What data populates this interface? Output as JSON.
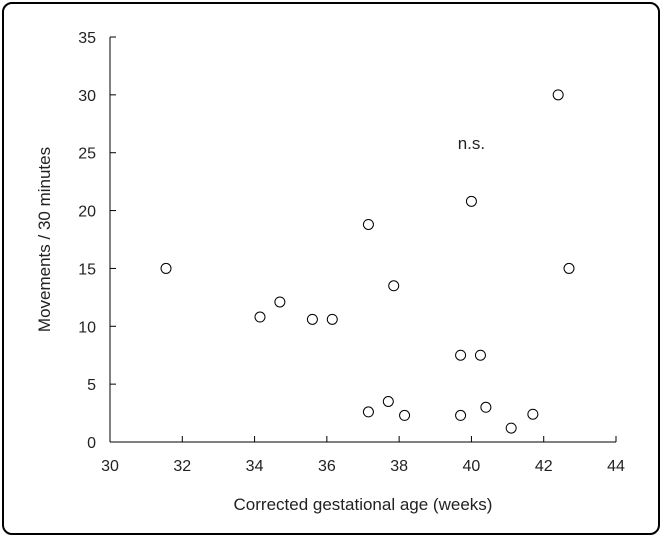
{
  "chart_data": {
    "type": "scatter",
    "xlabel": "Corrected gestational age (weeks)",
    "ylabel": "Movements / 30 minutes",
    "xlim": [
      30,
      44
    ],
    "ylim": [
      0,
      35
    ],
    "xticks": [
      30,
      32,
      34,
      36,
      38,
      40,
      42,
      44
    ],
    "yticks": [
      0,
      5,
      10,
      15,
      20,
      25,
      30,
      35
    ],
    "annotation": "n.s.",
    "grid": false,
    "marker": "open-circle",
    "points": [
      {
        "x": 31.55,
        "y": 15.0
      },
      {
        "x": 34.15,
        "y": 10.8
      },
      {
        "x": 34.7,
        "y": 12.1
      },
      {
        "x": 35.6,
        "y": 10.6
      },
      {
        "x": 36.15,
        "y": 10.6
      },
      {
        "x": 37.15,
        "y": 18.8
      },
      {
        "x": 37.15,
        "y": 2.6
      },
      {
        "x": 37.7,
        "y": 3.5
      },
      {
        "x": 37.85,
        "y": 13.5
      },
      {
        "x": 38.15,
        "y": 2.3
      },
      {
        "x": 39.7,
        "y": 7.5
      },
      {
        "x": 39.7,
        "y": 2.3
      },
      {
        "x": 40.0,
        "y": 20.8
      },
      {
        "x": 40.25,
        "y": 7.5
      },
      {
        "x": 40.4,
        "y": 3.0
      },
      {
        "x": 41.1,
        "y": 1.2
      },
      {
        "x": 41.7,
        "y": 2.4
      },
      {
        "x": 42.4,
        "y": 30.0
      },
      {
        "x": 42.7,
        "y": 15.0
      }
    ]
  }
}
